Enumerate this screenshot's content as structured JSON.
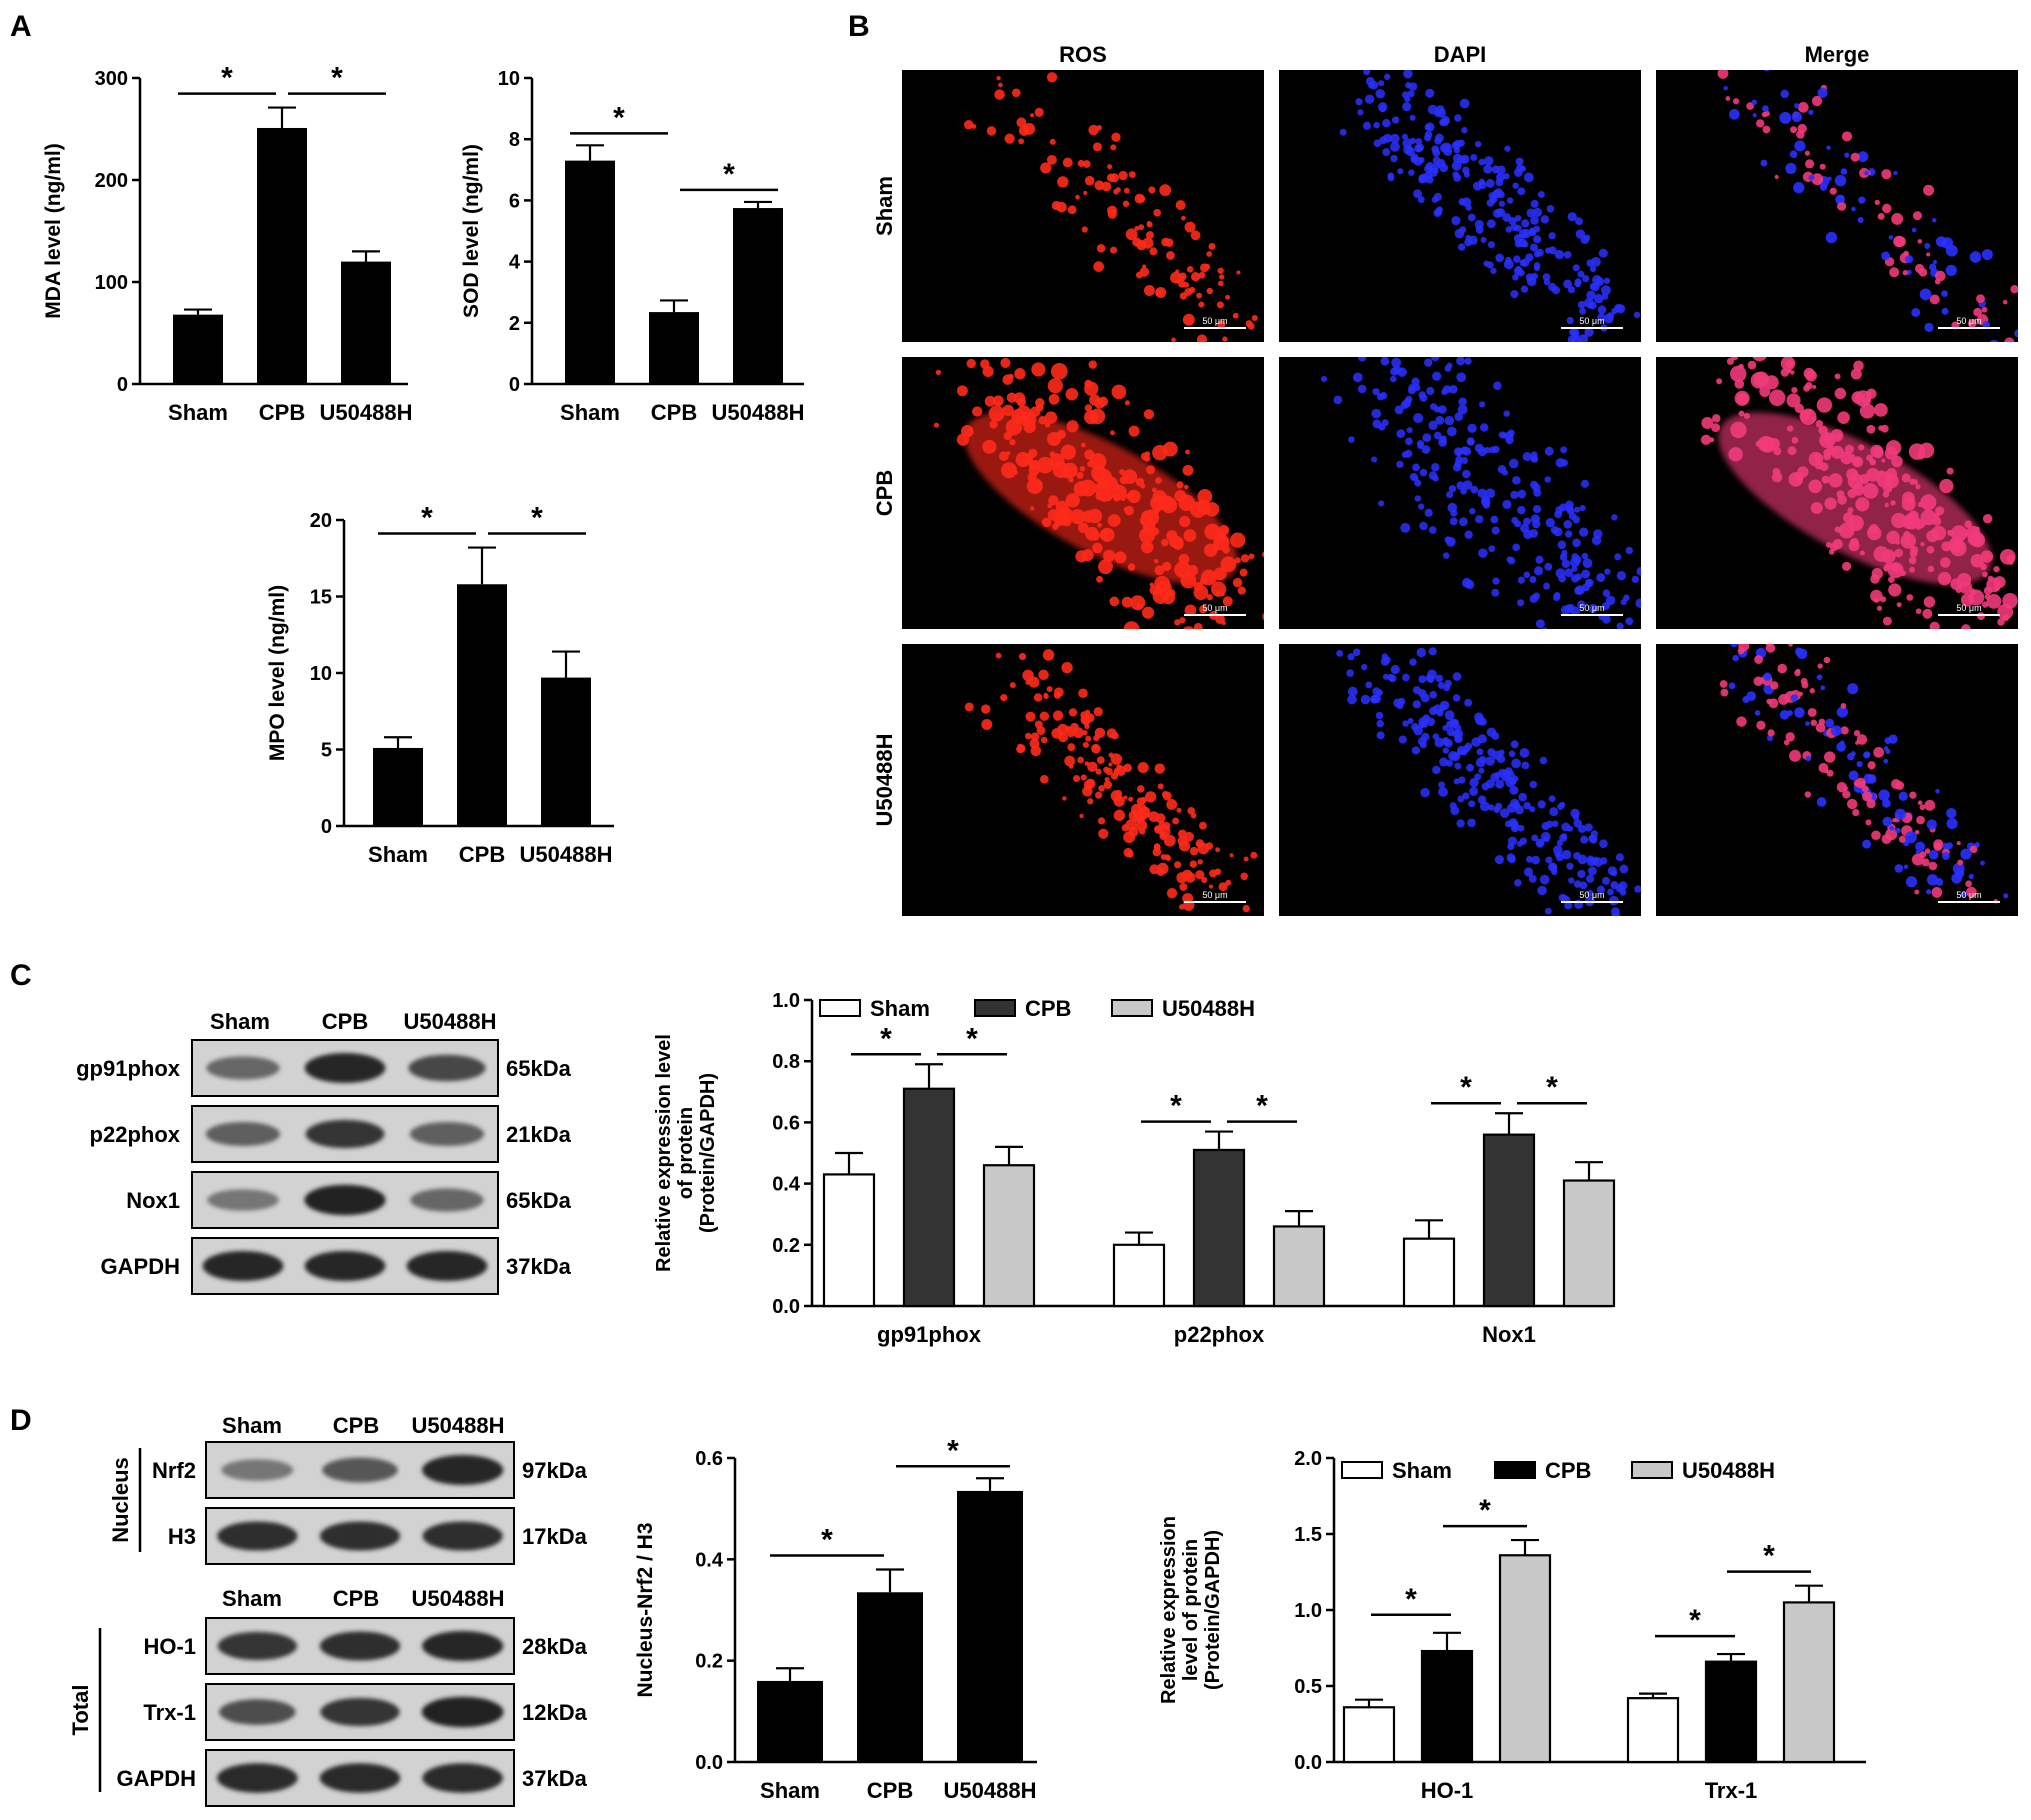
{
  "panels": {
    "a": "A",
    "b": "B",
    "c": "C",
    "d": "D"
  },
  "significance_mark": "*",
  "colors": {
    "black": "#000000",
    "white": "#ffffff",
    "dark_gray": "#333333",
    "light_gray": "#c8c8c8",
    "ros_red": "#ff2a1a",
    "dapi_blue": "#2a30ff",
    "merge_pink": "#f23a7a",
    "blot_bg": "#d2d2d2",
    "blot_band": "#1e1e1e"
  },
  "chart_data": [
    {
      "id": "mda",
      "type": "bar",
      "categories": [
        "Sham",
        "CPB",
        "U50488H"
      ],
      "values": [
        68,
        251,
        120
      ],
      "errors": [
        5,
        20,
        10
      ],
      "ylabel": "MDA level (ng/ml)",
      "ylim": [
        0,
        300
      ],
      "yticks": [
        0,
        100,
        200,
        300
      ],
      "significance": [
        [
          0,
          1
        ],
        [
          1,
          2
        ]
      ]
    },
    {
      "id": "sod",
      "type": "bar",
      "categories": [
        "Sham",
        "CPB",
        "U50488H"
      ],
      "values": [
        7.3,
        2.35,
        5.75
      ],
      "errors": [
        0.5,
        0.38,
        0.2
      ],
      "ylabel": "SOD level (ng/ml)",
      "ylim": [
        0,
        10
      ],
      "yticks": [
        0,
        2,
        4,
        6,
        8,
        10
      ],
      "significance": [
        [
          0,
          1
        ],
        [
          1,
          2
        ]
      ]
    },
    {
      "id": "mpo",
      "type": "bar",
      "categories": [
        "Sham",
        "CPB",
        "U50488H"
      ],
      "values": [
        5.1,
        15.8,
        9.7
      ],
      "errors": [
        0.7,
        2.4,
        1.7
      ],
      "ylabel": "MPO level (ng/ml)",
      "ylim": [
        0,
        20
      ],
      "yticks": [
        0,
        5,
        10,
        15,
        20
      ],
      "significance": [
        [
          0,
          1
        ],
        [
          1,
          2
        ]
      ]
    },
    {
      "id": "nox",
      "type": "bar",
      "categories": [
        "gp91phox",
        "p22phox",
        "Nox1"
      ],
      "series": [
        {
          "name": "Sham",
          "values": [
            0.43,
            0.2,
            0.22
          ],
          "errors": [
            0.07,
            0.04,
            0.06
          ],
          "color": "#ffffff"
        },
        {
          "name": "CPB",
          "values": [
            0.71,
            0.51,
            0.56
          ],
          "errors": [
            0.08,
            0.06,
            0.07
          ],
          "color": "#333333"
        },
        {
          "name": "U50488H",
          "values": [
            0.46,
            0.26,
            0.41
          ],
          "errors": [
            0.06,
            0.05,
            0.06
          ],
          "color": "#c8c8c8"
        }
      ],
      "ylabel_lines": [
        "Relative expression level",
        "of protein",
        "(Protein/GAPDH)"
      ],
      "ylim": [
        0,
        1.0
      ],
      "yticks": [
        0.0,
        0.2,
        0.4,
        0.6,
        0.8,
        1.0
      ],
      "legend": "top"
    },
    {
      "id": "nrf2",
      "type": "bar",
      "categories": [
        "Sham",
        "CPB",
        "U50488H"
      ],
      "values": [
        0.16,
        0.335,
        0.535
      ],
      "errors": [
        0.025,
        0.045,
        0.025
      ],
      "ylabel": "Nucleus-Nrf2 / H3",
      "ylim": [
        0,
        0.6
      ],
      "yticks": [
        0.0,
        0.2,
        0.4,
        0.6
      ],
      "significance": [
        [
          0,
          1
        ],
        [
          1,
          2
        ]
      ]
    },
    {
      "id": "ho1trx",
      "type": "bar",
      "categories": [
        "HO-1",
        "Trx-1"
      ],
      "series": [
        {
          "name": "Sham",
          "values": [
            0.36,
            0.42
          ],
          "errors": [
            0.05,
            0.03
          ],
          "color": "#ffffff"
        },
        {
          "name": "CPB",
          "values": [
            0.73,
            0.66
          ],
          "errors": [
            0.12,
            0.05
          ],
          "color": "#000000"
        },
        {
          "name": "U50488H",
          "values": [
            1.36,
            1.05
          ],
          "errors": [
            0.1,
            0.11
          ],
          "color": "#c8c8c8"
        }
      ],
      "ylabel_lines": [
        "Relative expression",
        "level of protein",
        "(Protein/GAPDH)"
      ],
      "ylim": [
        0,
        2.0
      ],
      "yticks": [
        0.0,
        0.5,
        1.0,
        1.5,
        2.0
      ],
      "legend": "top"
    }
  ],
  "micrographs": {
    "columns": [
      "ROS",
      "DAPI",
      "Merge"
    ],
    "rows": [
      "Sham",
      "CPB",
      "U50488H"
    ],
    "scale_label": "50 μm"
  },
  "blots_c": {
    "lanes": [
      "Sham",
      "CPB",
      "U50488H"
    ],
    "rows": [
      {
        "name": "gp91phox",
        "size": "65kDa",
        "intensity": [
          0.55,
          0.95,
          0.75
        ]
      },
      {
        "name": "p22phox",
        "size": "21kDa",
        "intensity": [
          0.6,
          0.85,
          0.6
        ]
      },
      {
        "name": "Nox1",
        "size": "65kDa",
        "intensity": [
          0.45,
          0.98,
          0.55
        ]
      },
      {
        "name": "GAPDH",
        "size": "37kDa",
        "intensity": [
          0.95,
          0.95,
          0.95
        ]
      }
    ]
  },
  "blots_d": {
    "lanes": [
      "Sham",
      "CPB",
      "U50488H"
    ],
    "nucleus_label": "Nucleus",
    "total_label": "Total",
    "nucleus_rows": [
      {
        "name": "Nrf2",
        "size": "97kDa",
        "intensity": [
          0.45,
          0.65,
          0.95
        ]
      },
      {
        "name": "H3",
        "size": "17kDa",
        "intensity": [
          0.9,
          0.9,
          0.9
        ]
      }
    ],
    "total_rows": [
      {
        "name": "HO-1",
        "size": "28kDa",
        "intensity": [
          0.85,
          0.9,
          0.95
        ]
      },
      {
        "name": "Trx-1",
        "size": "12kDa",
        "intensity": [
          0.7,
          0.85,
          0.98
        ]
      },
      {
        "name": "GAPDH",
        "size": "37kDa",
        "intensity": [
          0.92,
          0.92,
          0.92
        ]
      }
    ]
  }
}
